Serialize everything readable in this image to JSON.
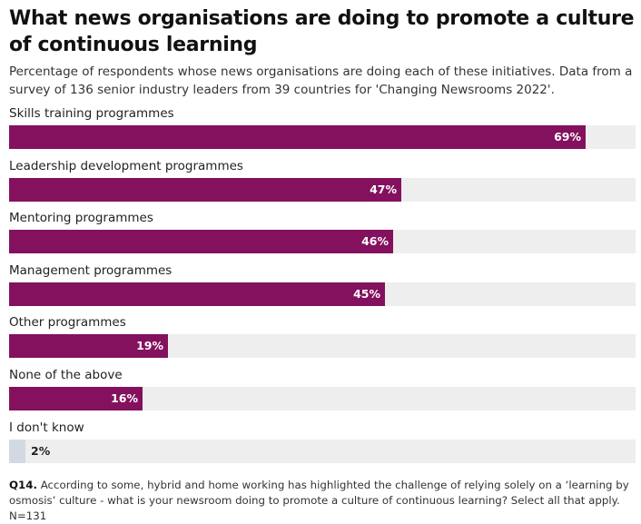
{
  "title": "What news organisations are doing to promote a culture of continuous learning",
  "subtitle": "Percentage of respondents whose news organisations are doing each of these initiatives. Data from a survey of 136 senior industry leaders from 39 countries for 'Changing Newsrooms 2022'.",
  "colors": {
    "bar": "#84115e",
    "bar_small": "#d3d9e3",
    "track": "#eeeeef",
    "label_inside": "#ffffff",
    "label_outside": "#222222"
  },
  "chart_data": {
    "type": "bar",
    "orientation": "horizontal",
    "categories": [
      "Skills training programmes",
      "Leadership development programmes",
      "Mentoring programmes",
      "Management programmes",
      "Other programmes",
      "None of the above",
      "I don't know"
    ],
    "values": [
      69,
      47,
      46,
      45,
      19,
      16,
      2
    ],
    "value_labels": [
      "69%",
      "47%",
      "46%",
      "45%",
      "19%",
      "16%",
      "2%"
    ],
    "unit": "%",
    "xlim": [
      0,
      75
    ]
  },
  "footnote": {
    "label": "Q14.",
    "text": "According to some, hybrid and home working has highlighted the challenge of relying solely on a ‘learning by osmosis’ culture - what is your newsroom doing to promote a culture of continuous learning? Select all that apply. N=131"
  }
}
